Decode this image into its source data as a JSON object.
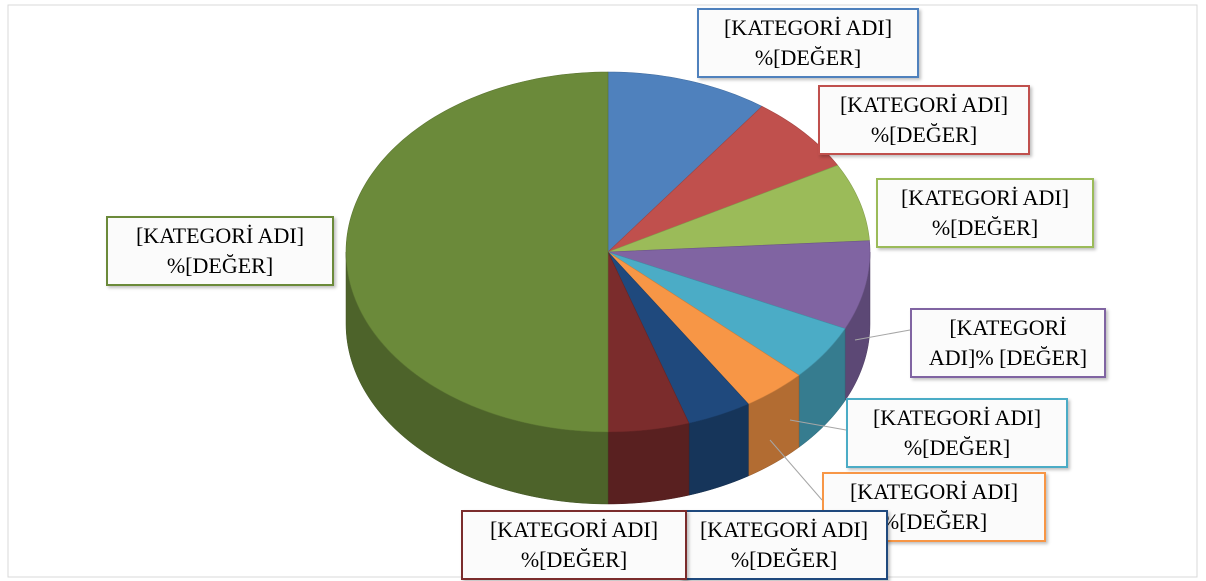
{
  "chart_data": {
    "type": "pie",
    "style": "3d",
    "categories": [
      "[KATEGORİ ADI]",
      "[KATEGORİ ADI]",
      "[KATEGORİ ADI]",
      "[KATEGORİ ADI]",
      "[KATEGORİ ADI]",
      "[KATEGORİ ADI]",
      "[KATEGORİ ADI]",
      "[KATEGORİ ADI]",
      "[KATEGORİ ADI]"
    ],
    "values": [
      10,
      7,
      7,
      8,
      5,
      4,
      4,
      5,
      50
    ],
    "value_labels": [
      "%[DEĞER]",
      "%[DEĞER]",
      "%[DEĞER]",
      "% [DEĞER]",
      "%[DEĞER]",
      "%[DEĞER]",
      "%[DEĞER]",
      "%[DEĞER]",
      "%[DEĞER]"
    ],
    "colors": [
      "#4f81bd",
      "#c0504d",
      "#9bbb59",
      "#8064a2",
      "#4bacc6",
      "#f79646",
      "#1f497d",
      "#7b2c2c",
      "#6b8a3a"
    ]
  }
}
